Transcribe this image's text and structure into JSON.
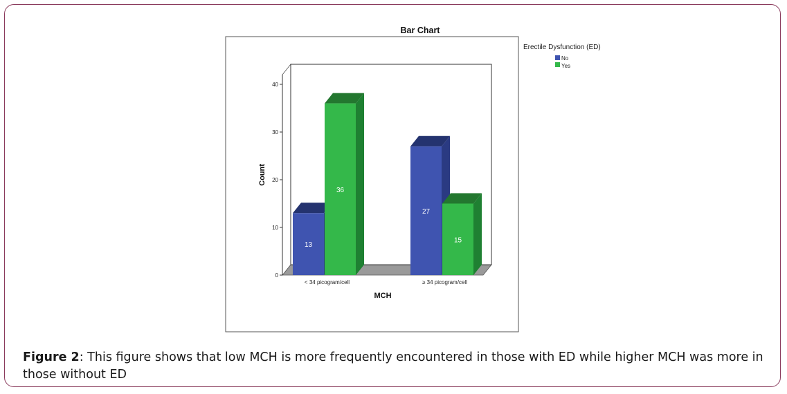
{
  "chart_data": {
    "type": "bar",
    "title": "Bar Chart",
    "xlabel": "MCH",
    "ylabel": "Count",
    "ylim": [
      0,
      40
    ],
    "yticks": [
      "0",
      "10",
      "20",
      "30",
      "40"
    ],
    "categories": [
      "< 34 picogram/cell",
      "≥ 34 picogram/cell"
    ],
    "legend_title": "Erectile Dysfunction (ED)",
    "series": [
      {
        "name": "No",
        "values": [
          13,
          27
        ],
        "labels": [
          "13",
          "27"
        ]
      },
      {
        "name": "Yes",
        "values": [
          36,
          15
        ],
        "labels": [
          "36",
          "15"
        ]
      }
    ],
    "colors": {
      "No": {
        "front": "#3f54b0",
        "side": "#2a3a82",
        "top": "#24336f"
      },
      "Yes": {
        "front": "#34b84a",
        "side": "#1f8032",
        "top": "#23772f"
      },
      "floor": "#9a9a9a",
      "wall": "#ffffff"
    }
  },
  "caption": {
    "label": "Figure 2",
    "text": ": This figure shows that low MCH is more frequently encountered in those with ED while higher MCH was more in those without ED"
  }
}
